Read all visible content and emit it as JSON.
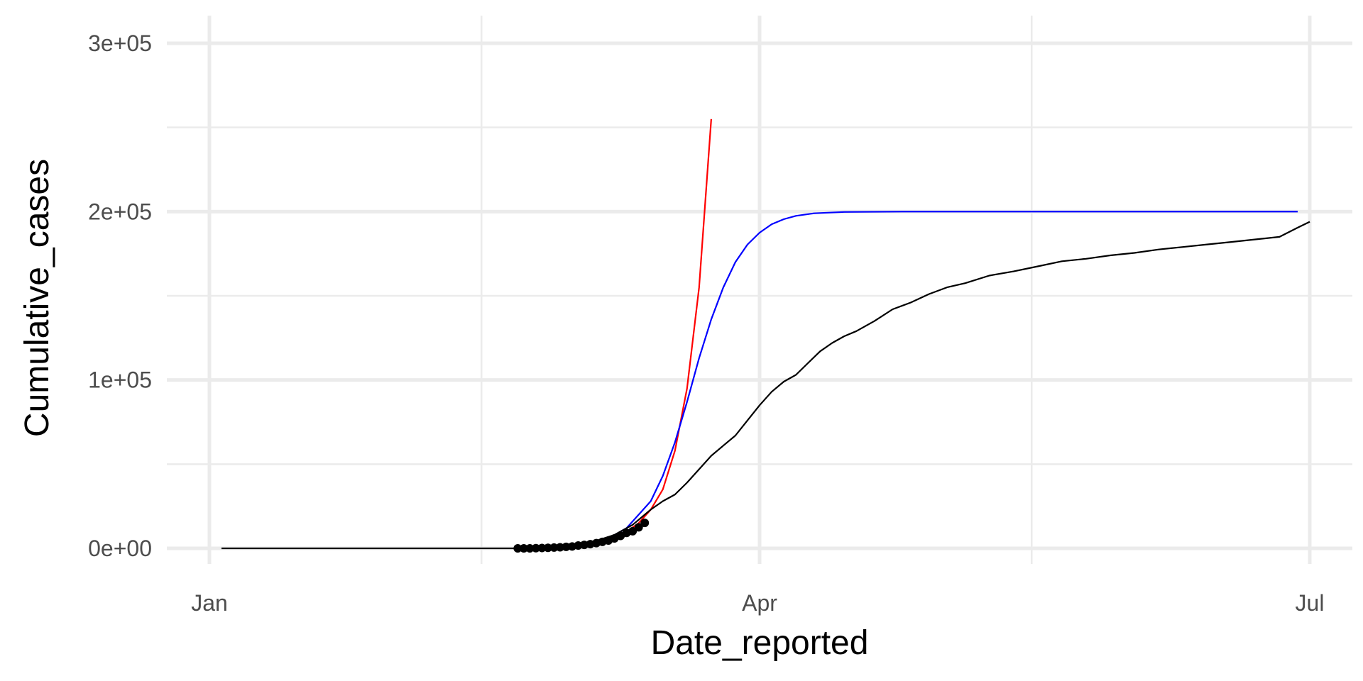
{
  "chart_data": {
    "type": "line",
    "title": "",
    "xlabel": "Date_reported",
    "ylabel": "Cumulative_cases",
    "x_type": "date",
    "xlim": [
      "2020-01-01",
      "2020-07-01"
    ],
    "ylim": [
      0,
      300000
    ],
    "grid": true,
    "legend": "none",
    "x_ticks": [
      {
        "value": "2020-01-01",
        "label": "Jan"
      },
      {
        "value": "2020-04-01",
        "label": "Apr"
      },
      {
        "value": "2020-07-01",
        "label": "Jul"
      }
    ],
    "x_minor_ticks": [
      "2020-02-15",
      "2020-05-16"
    ],
    "y_ticks": [
      {
        "value": 0,
        "label": "0e+00"
      },
      {
        "value": 100000,
        "label": "1e+05"
      },
      {
        "value": 200000,
        "label": "2e+05"
      },
      {
        "value": 300000,
        "label": "3e+05"
      }
    ],
    "y_minor_ticks": [
      50000,
      150000,
      250000
    ],
    "series": [
      {
        "color": "#ff0000",
        "style": "line",
        "points": [
          [
            "2020-03-02",
            1200
          ],
          [
            "2020-03-04",
            2000
          ],
          [
            "2020-03-06",
            3500
          ],
          [
            "2020-03-08",
            5900
          ],
          [
            "2020-03-10",
            9800
          ],
          [
            "2020-03-12",
            15000
          ],
          [
            "2020-03-14",
            23000
          ],
          [
            "2020-03-16",
            35000
          ],
          [
            "2020-03-18",
            58000
          ],
          [
            "2020-03-20",
            95000
          ],
          [
            "2020-03-22",
            155000
          ],
          [
            "2020-03-24",
            255000
          ]
        ]
      },
      {
        "color": "#0000ff",
        "style": "line",
        "points": [
          [
            "2020-03-02",
            1000
          ],
          [
            "2020-03-06",
            3800
          ],
          [
            "2020-03-10",
            12000
          ],
          [
            "2020-03-14",
            28000
          ],
          [
            "2020-03-16",
            43000
          ],
          [
            "2020-03-18",
            63000
          ],
          [
            "2020-03-20",
            87000
          ],
          [
            "2020-03-22",
            113000
          ],
          [
            "2020-03-24",
            136000
          ],
          [
            "2020-03-26",
            155000
          ],
          [
            "2020-03-28",
            170000
          ],
          [
            "2020-03-30",
            180500
          ],
          [
            "2020-04-01",
            187500
          ],
          [
            "2020-04-03",
            192500
          ],
          [
            "2020-04-05",
            195500
          ],
          [
            "2020-04-07",
            197500
          ],
          [
            "2020-04-10",
            199000
          ],
          [
            "2020-04-15",
            199800
          ],
          [
            "2020-04-25",
            200000
          ],
          [
            "2020-06-29",
            200000
          ]
        ]
      },
      {
        "color": "#000000",
        "style": "line",
        "points": [
          [
            "2020-01-03",
            0
          ],
          [
            "2020-02-15",
            0
          ],
          [
            "2020-02-23",
            0
          ],
          [
            "2020-02-27",
            500
          ],
          [
            "2020-03-01",
            1500
          ],
          [
            "2020-03-05",
            4500
          ],
          [
            "2020-03-08",
            8000
          ],
          [
            "2020-03-11",
            14000
          ],
          [
            "2020-03-14",
            23000
          ],
          [
            "2020-03-16",
            28000
          ],
          [
            "2020-03-18",
            32000
          ],
          [
            "2020-03-20",
            39000
          ],
          [
            "2020-03-22",
            47000
          ],
          [
            "2020-03-24",
            55000
          ],
          [
            "2020-03-26",
            61000
          ],
          [
            "2020-03-28",
            67000
          ],
          [
            "2020-03-30",
            76000
          ],
          [
            "2020-04-01",
            85000
          ],
          [
            "2020-04-03",
            93000
          ],
          [
            "2020-04-05",
            99000
          ],
          [
            "2020-04-07",
            103000
          ],
          [
            "2020-04-09",
            110000
          ],
          [
            "2020-04-11",
            117000
          ],
          [
            "2020-04-13",
            122000
          ],
          [
            "2020-04-15",
            126000
          ],
          [
            "2020-04-17",
            129000
          ],
          [
            "2020-04-20",
            135000
          ],
          [
            "2020-04-23",
            142000
          ],
          [
            "2020-04-26",
            146000
          ],
          [
            "2020-04-29",
            151000
          ],
          [
            "2020-05-02",
            155000
          ],
          [
            "2020-05-05",
            157500
          ],
          [
            "2020-05-09",
            162000
          ],
          [
            "2020-05-13",
            164500
          ],
          [
            "2020-05-17",
            167500
          ],
          [
            "2020-05-21",
            170500
          ],
          [
            "2020-05-25",
            172000
          ],
          [
            "2020-05-29",
            174000
          ],
          [
            "2020-06-02",
            175500
          ],
          [
            "2020-06-06",
            177500
          ],
          [
            "2020-06-10",
            179000
          ],
          [
            "2020-06-14",
            180500
          ],
          [
            "2020-06-18",
            182000
          ],
          [
            "2020-06-22",
            183500
          ],
          [
            "2020-06-26",
            185000
          ],
          [
            "2020-06-29",
            190500
          ],
          [
            "2020-07-01",
            194000
          ]
        ]
      },
      {
        "color": "#000000",
        "style": "points",
        "points": [
          [
            "2020-02-21",
            0
          ],
          [
            "2020-02-22",
            0
          ],
          [
            "2020-02-23",
            20
          ],
          [
            "2020-02-24",
            80
          ],
          [
            "2020-02-25",
            200
          ],
          [
            "2020-02-26",
            320
          ],
          [
            "2020-02-27",
            450
          ],
          [
            "2020-02-28",
            650
          ],
          [
            "2020-02-29",
            890
          ],
          [
            "2020-03-01",
            1130
          ],
          [
            "2020-03-02",
            1690
          ],
          [
            "2020-03-03",
            2040
          ],
          [
            "2020-03-04",
            2500
          ],
          [
            "2020-03-05",
            3090
          ],
          [
            "2020-03-06",
            3860
          ],
          [
            "2020-03-07",
            4640
          ],
          [
            "2020-03-08",
            5880
          ],
          [
            "2020-03-09",
            7380
          ],
          [
            "2020-03-10",
            9170
          ],
          [
            "2020-03-11",
            10150
          ],
          [
            "2020-03-12",
            12460
          ],
          [
            "2020-03-13",
            15110
          ]
        ]
      }
    ]
  }
}
